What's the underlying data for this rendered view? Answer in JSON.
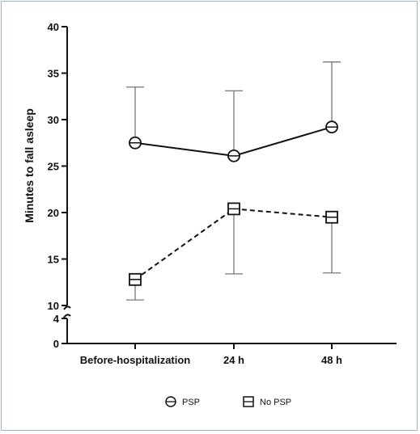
{
  "chart_data": {
    "type": "line",
    "title": "",
    "xlabel": "",
    "ylabel": "Minutes to fall asleep",
    "categories": [
      "Before-hospitalization",
      "24 h",
      "48 h"
    ],
    "y_upper_ticks": [
      "10",
      "15",
      "20",
      "25",
      "30",
      "35",
      "40"
    ],
    "y_lower_ticks": [
      "0",
      "4"
    ],
    "ylim_upper": [
      10,
      40
    ],
    "ylim_lower": [
      0,
      4
    ],
    "axis_break": true,
    "grid": false,
    "legend_position": "bottom",
    "series": [
      {
        "name": "PSP",
        "marker": "circle-with-line",
        "line_style": "solid",
        "values": [
          27.5,
          26.1,
          29.2
        ],
        "error_upper": [
          33.5,
          33.1,
          36.2
        ],
        "error_lower": null
      },
      {
        "name": "No PSP",
        "marker": "square-with-line",
        "line_style": "dashed",
        "values": [
          12.8,
          20.4,
          19.5
        ],
        "error_upper": null,
        "error_lower": [
          10.6,
          13.4,
          13.5
        ]
      }
    ],
    "colors": {
      "line": "#111111",
      "error_bar": "#777777",
      "frame": "#9db3c8"
    }
  }
}
